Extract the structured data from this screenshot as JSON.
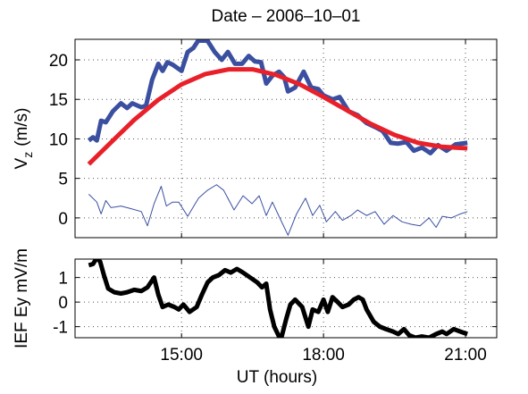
{
  "chart_data": [
    {
      "type": "line",
      "title": "Date – 2006–10–01",
      "ylabel": {
        "main": "V",
        "subscript": "z",
        "unit": "(m/s)"
      },
      "xlim": [
        12.75,
        21.66
      ],
      "xticks": [
        15,
        18,
        21
      ],
      "ylim": [
        -2.5,
        22.6
      ],
      "yticks": [
        0,
        5,
        10,
        15,
        20
      ],
      "grid": true,
      "series": [
        {
          "color": "#3a4fa0",
          "width": 5,
          "x": [
            13.04,
            13.13,
            13.21,
            13.3,
            13.4,
            13.55,
            13.72,
            13.85,
            13.96,
            14.15,
            14.25,
            14.38,
            14.51,
            14.6,
            14.7,
            14.81,
            15.0,
            15.13,
            15.25,
            15.36,
            15.55,
            15.7,
            15.85,
            15.98,
            16.13,
            16.28,
            16.42,
            16.55,
            16.68,
            16.79,
            16.92,
            17.06,
            17.17,
            17.25,
            17.4,
            17.58,
            17.74,
            17.89,
            18.0,
            18.19,
            18.34,
            18.53,
            18.72,
            18.91,
            19.09,
            19.25,
            19.42,
            19.57,
            19.75,
            19.91,
            20.08,
            20.26,
            20.42,
            20.6,
            20.79,
            21.04
          ],
          "values": [
            9.8,
            10.2,
            9.8,
            12.3,
            12.1,
            13.5,
            14.5,
            13.9,
            14.5,
            14.0,
            14.2,
            17.5,
            19.5,
            18.6,
            19.7,
            19.4,
            18.6,
            21.0,
            21.5,
            22.5,
            22.4,
            21.0,
            20.0,
            21.0,
            19.5,
            19.5,
            20.5,
            19.8,
            19.7,
            17.0,
            18.0,
            18.5,
            17.8,
            16.0,
            16.5,
            18.5,
            16.5,
            16.3,
            15.5,
            15.0,
            15.3,
            13.5,
            13.0,
            12.0,
            11.5,
            11.0,
            9.5,
            9.4,
            9.6,
            8.5,
            8.9,
            8.2,
            9.2,
            8.5,
            9.3,
            9.5
          ]
        },
        {
          "color": "#e8202a",
          "width": 5,
          "x": [
            13.04,
            13.5,
            14,
            14.5,
            15,
            15.5,
            16,
            16.5,
            17,
            17.5,
            18,
            18.5,
            19,
            19.5,
            20,
            20.5,
            21.04
          ],
          "values": [
            6.8,
            9.5,
            12.4,
            14.9,
            16.9,
            18.2,
            18.8,
            18.8,
            18.1,
            16.9,
            15.3,
            13.6,
            11.9,
            10.5,
            9.5,
            9.0,
            8.8
          ]
        },
        {
          "color": "#3a4fa0",
          "width": 1,
          "x": [
            13.04,
            13.21,
            13.3,
            13.4,
            13.51,
            13.72,
            13.91,
            14.15,
            14.28,
            14.42,
            14.57,
            14.68,
            14.81,
            14.94,
            15.13,
            15.36,
            15.55,
            15.74,
            15.89,
            16.11,
            16.3,
            16.49,
            16.64,
            16.79,
            16.92,
            17.06,
            17.25,
            17.43,
            17.62,
            17.77,
            17.92,
            18.06,
            18.25,
            18.4,
            18.58,
            18.72,
            18.91,
            19.09,
            19.28,
            19.47,
            19.66,
            19.85,
            20.04,
            20.23,
            20.38,
            20.51,
            20.7,
            20.89,
            21.04
          ],
          "values": [
            3.0,
            2.0,
            0.5,
            2.2,
            1.3,
            1.5,
            1.2,
            0.8,
            -1.0,
            1.8,
            4.0,
            1.5,
            2.0,
            2.0,
            0.2,
            2.5,
            3.5,
            4.2,
            3.5,
            1.0,
            2.8,
            1.8,
            2.8,
            0.3,
            2.0,
            0.2,
            -2.2,
            0.5,
            2.5,
            0.3,
            1.6,
            -0.5,
            0.8,
            -0.3,
            0.3,
            1.0,
            0.3,
            0.8,
            -0.8,
            0.3,
            -0.5,
            -0.8,
            -1.0,
            0.0,
            -1.2,
            0.2,
            0.0,
            0.5,
            0.8
          ]
        }
      ]
    },
    {
      "type": "line",
      "ylabel": "IEF Ey mV/m",
      "xlabel": "UT (hours)",
      "xlim": [
        12.75,
        21.66
      ],
      "xticks": [
        {
          "value": 15,
          "label": "15:00"
        },
        {
          "value": 18,
          "label": "18:00"
        },
        {
          "value": 21,
          "label": "21:00"
        }
      ],
      "ylim": [
        -1.45,
        1.75
      ],
      "yticks": [
        -1,
        0,
        1
      ],
      "grid": true,
      "series": [
        {
          "color": "#000000",
          "width": 5,
          "x": [
            13.04,
            13.13,
            13.21,
            13.28,
            13.36,
            13.45,
            13.58,
            13.72,
            13.85,
            14.0,
            14.15,
            14.28,
            14.42,
            14.51,
            14.6,
            14.72,
            14.85,
            14.94,
            15.04,
            15.17,
            15.32,
            15.43,
            15.55,
            15.66,
            15.79,
            15.92,
            16.04,
            16.17,
            16.3,
            16.45,
            16.6,
            16.7,
            16.79,
            16.87,
            16.96,
            17.06,
            17.11,
            17.21,
            17.3,
            17.4,
            17.55,
            17.68,
            17.77,
            17.89,
            18.0,
            18.09,
            18.19,
            18.3,
            18.4,
            18.53,
            18.64,
            18.74,
            18.83,
            18.91,
            19.06,
            19.19,
            19.32,
            19.47,
            19.58,
            19.7,
            19.81,
            19.94,
            20.08,
            20.23,
            20.38,
            20.51,
            20.6,
            20.75,
            20.89,
            21.04
          ],
          "values": [
            1.5,
            1.55,
            1.8,
            1.65,
            1.1,
            0.55,
            0.4,
            0.35,
            0.4,
            0.5,
            0.45,
            0.6,
            1.0,
            0.3,
            -0.2,
            -0.1,
            -0.2,
            -0.3,
            -0.1,
            -0.4,
            -0.2,
            0.3,
            0.8,
            1.0,
            1.1,
            1.3,
            1.2,
            1.35,
            1.2,
            1.0,
            0.8,
            0.6,
            0.75,
            -0.3,
            -1.0,
            -1.4,
            -1.45,
            -0.7,
            -0.1,
            0.1,
            -0.2,
            -1.0,
            -0.3,
            -0.4,
            0.1,
            -0.4,
            0.2,
            0.0,
            -0.2,
            -0.1,
            0.1,
            0.2,
            0.1,
            -0.3,
            -0.8,
            -1.0,
            -1.1,
            -1.2,
            -1.3,
            -1.1,
            -1.35,
            -1.45,
            -1.4,
            -1.45,
            -1.3,
            -1.2,
            -1.3,
            -1.1,
            -1.2,
            -1.3
          ]
        }
      ]
    }
  ]
}
